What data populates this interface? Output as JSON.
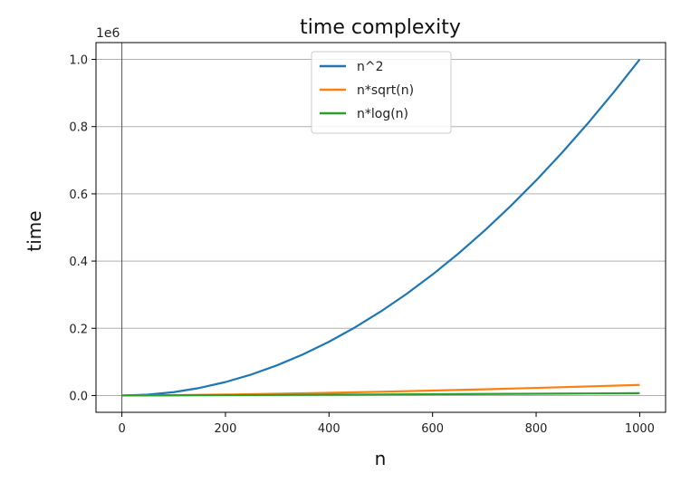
{
  "chart_data": {
    "type": "line",
    "title": "time complexity",
    "xlabel": "n",
    "ylabel": "time",
    "y_offset_label": "1e6",
    "xlim": [
      -50,
      1050
    ],
    "ylim": [
      -0.05,
      1.05
    ],
    "x_ticks": [
      0,
      200,
      400,
      600,
      800,
      1000
    ],
    "y_ticks": [
      0.0,
      0.2,
      0.4,
      0.6,
      0.8,
      1.0
    ],
    "x_tick_labels": [
      "0",
      "200",
      "400",
      "600",
      "800",
      "1000"
    ],
    "y_tick_labels": [
      "0.0",
      "0.2",
      "0.4",
      "0.6",
      "0.8",
      "1.0"
    ],
    "grid": "horizontal",
    "legend_position": "top-center",
    "series": [
      {
        "name": "n^2",
        "color": "#1f77b4",
        "x": [
          1,
          50,
          100,
          150,
          200,
          250,
          300,
          350,
          400,
          450,
          500,
          550,
          600,
          650,
          700,
          750,
          800,
          850,
          900,
          950,
          1000
        ],
        "y": [
          1e-06,
          0.0025,
          0.01,
          0.0225,
          0.04,
          0.0625,
          0.09,
          0.1225,
          0.16,
          0.2025,
          0.25,
          0.3025,
          0.36,
          0.4225,
          0.49,
          0.5625,
          0.64,
          0.7225,
          0.81,
          0.9025,
          1.0
        ]
      },
      {
        "name": "n*sqrt(n)",
        "color": "#ff7f0e",
        "x": [
          1,
          100,
          200,
          300,
          400,
          500,
          600,
          700,
          800,
          900,
          1000
        ],
        "y": [
          1e-06,
          0.001,
          0.00283,
          0.0052,
          0.008,
          0.01118,
          0.0147,
          0.01852,
          0.02263,
          0.027,
          0.03162
        ]
      },
      {
        "name": "n*log(n)",
        "color": "#2ca02c",
        "x": [
          1,
          100,
          200,
          300,
          400,
          500,
          600,
          700,
          800,
          900,
          1000
        ],
        "y": [
          0.0,
          0.00046,
          0.00106,
          0.00171,
          0.0024,
          0.00311,
          0.00384,
          0.00459,
          0.00535,
          0.00612,
          0.00691
        ]
      }
    ]
  }
}
